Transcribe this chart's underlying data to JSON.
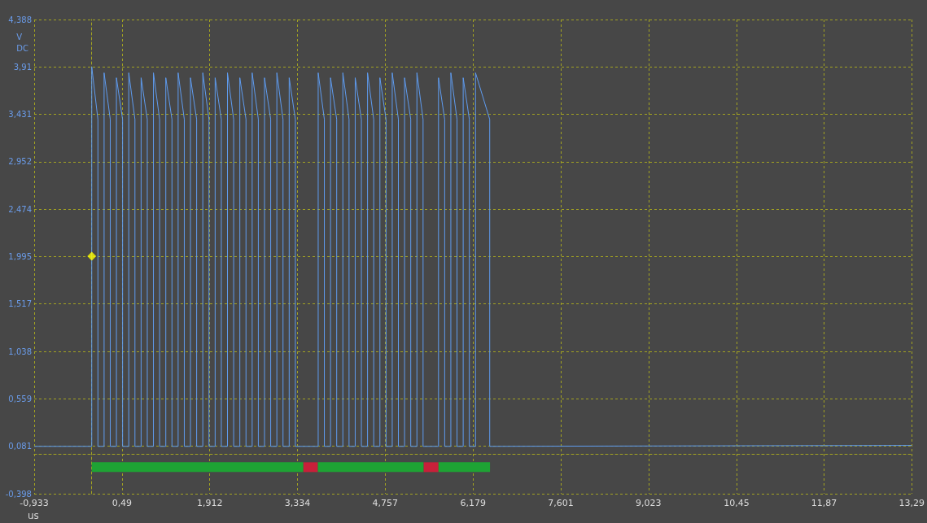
{
  "chart_data": {
    "type": "line",
    "xlabel": "us",
    "ylabel": "V DC",
    "xlim": [
      -0.933,
      13.29
    ],
    "xticks": [
      {
        "value": -0.933,
        "label": "-0,933"
      },
      {
        "value": 0.49,
        "label": "0,49"
      },
      {
        "value": 1.912,
        "label": "1,912"
      },
      {
        "value": 3.334,
        "label": "3,334"
      },
      {
        "value": 4.757,
        "label": "4,757"
      },
      {
        "value": 6.179,
        "label": "6,179"
      },
      {
        "value": 7.601,
        "label": "7,601"
      },
      {
        "value": 9.023,
        "label": "9,023"
      },
      {
        "value": 10.45,
        "label": "10,45"
      },
      {
        "value": 11.87,
        "label": "11,87"
      },
      {
        "value": 13.29,
        "label": "13,29"
      }
    ],
    "ylim": [
      -0.398,
      4.388
    ],
    "yticks": [
      {
        "value": -0.398,
        "label": "-0,398"
      },
      {
        "value": 0.081,
        "label": "0,081"
      },
      {
        "value": 0.559,
        "label": "0,559"
      },
      {
        "value": 1.038,
        "label": "1,038"
      },
      {
        "value": 1.517,
        "label": "1,517"
      },
      {
        "value": 1.995,
        "label": "1,995"
      },
      {
        "value": 2.474,
        "label": "2,474"
      },
      {
        "value": 2.952,
        "label": "2,952"
      },
      {
        "value": 3.431,
        "label": "3,431"
      },
      {
        "value": 3.91,
        "label": "3,91"
      },
      {
        "value": 4.388,
        "label": "4,388"
      }
    ],
    "grid": true,
    "marker": "none",
    "line_style": "solid",
    "series": [
      {
        "color": "#5f9cf0",
        "x": [
          -0.93,
          0,
          0,
          0.1,
          0.1,
          0.2,
          0.2,
          0.3,
          0.3,
          0.4,
          0.4,
          0.5,
          0.5,
          0.6,
          0.6,
          0.7,
          0.7,
          0.8,
          0.8,
          0.9,
          0.9,
          1.0,
          1.0,
          1.1,
          1.1,
          1.2,
          1.2,
          1.3,
          1.3,
          1.4,
          1.4,
          1.5,
          1.5,
          1.6,
          1.6,
          1.7,
          1.7,
          1.8,
          1.8,
          1.9,
          1.9,
          2.0,
          2.0,
          2.1,
          2.1,
          2.2,
          2.2,
          2.3,
          2.3,
          2.4,
          2.4,
          2.5,
          2.5,
          2.6,
          2.6,
          2.7,
          2.7,
          2.8,
          2.8,
          2.9,
          2.9,
          3.0,
          3.0,
          3.1,
          3.1,
          3.2,
          3.2,
          3.3,
          3.3,
          3.67,
          3.67,
          3.77,
          3.77,
          3.87,
          3.87,
          3.97,
          3.97,
          4.07,
          4.07,
          4.17,
          4.17,
          4.27,
          4.27,
          4.37,
          4.37,
          4.47,
          4.47,
          4.57,
          4.57,
          4.67,
          4.67,
          4.77,
          4.77,
          4.87,
          4.87,
          4.97,
          4.97,
          5.07,
          5.07,
          5.17,
          5.17,
          5.27,
          5.27,
          5.37,
          5.37,
          5.62,
          5.62,
          5.72,
          5.72,
          5.82,
          5.82,
          5.92,
          5.92,
          6.02,
          6.02,
          6.12,
          6.12,
          6.22,
          6.22,
          6.45,
          6.45,
          13.29
        ],
        "values": [
          0.08,
          0.08,
          3.91,
          3.38,
          0.08,
          0.08,
          3.85,
          3.38,
          0.08,
          0.08,
          3.8,
          3.38,
          0.08,
          0.08,
          3.85,
          3.38,
          0.08,
          0.08,
          3.8,
          3.38,
          0.08,
          0.08,
          3.85,
          3.38,
          0.08,
          0.08,
          3.8,
          3.38,
          0.08,
          0.08,
          3.85,
          3.38,
          0.08,
          0.08,
          3.8,
          3.38,
          0.08,
          0.08,
          3.85,
          3.38,
          0.08,
          0.08,
          3.8,
          3.38,
          0.08,
          0.08,
          3.85,
          3.38,
          0.08,
          0.08,
          3.8,
          3.38,
          0.08,
          0.08,
          3.85,
          3.38,
          0.08,
          0.08,
          3.8,
          3.38,
          0.08,
          0.08,
          3.85,
          3.38,
          0.08,
          0.08,
          3.8,
          3.38,
          0.08,
          0.08,
          3.85,
          3.38,
          0.08,
          0.08,
          3.8,
          3.38,
          0.08,
          0.08,
          3.85,
          3.38,
          0.08,
          0.08,
          3.8,
          3.38,
          0.08,
          0.08,
          3.85,
          3.38,
          0.08,
          0.08,
          3.8,
          3.38,
          0.08,
          0.08,
          3.85,
          3.38,
          0.08,
          0.08,
          3.8,
          3.38,
          0.08,
          0.08,
          3.85,
          3.38,
          0.08,
          0.08,
          3.8,
          3.38,
          0.08,
          0.08,
          3.85,
          3.38,
          0.08,
          0.08,
          3.8,
          3.38,
          0.08,
          0.08,
          3.85,
          3.38,
          0.08,
          0.09
        ]
      },
      {
        "color": "#1ea334",
        "x": [
          0.0,
          3.43
        ],
        "values": [
          -0.13,
          -0.13
        ]
      },
      {
        "color": "#c8203a",
        "x": [
          3.43,
          3.665
        ],
        "values": [
          -0.13,
          -0.13
        ]
      },
      {
        "color": "#1ea334",
        "x": [
          3.665,
          5.38
        ],
        "values": [
          -0.13,
          -0.13
        ]
      },
      {
        "color": "#c8203a",
        "x": [
          5.38,
          5.62
        ],
        "values": [
          -0.13,
          -0.13
        ]
      },
      {
        "color": "#1ea334",
        "x": [
          5.62,
          6.455
        ],
        "values": [
          -0.13,
          -0.13
        ]
      },
      {
        "type": "scatter",
        "marker": "diamond",
        "color": "#ffff00",
        "x": [
          0.0
        ],
        "values": [
          2.0
        ]
      }
    ]
  }
}
